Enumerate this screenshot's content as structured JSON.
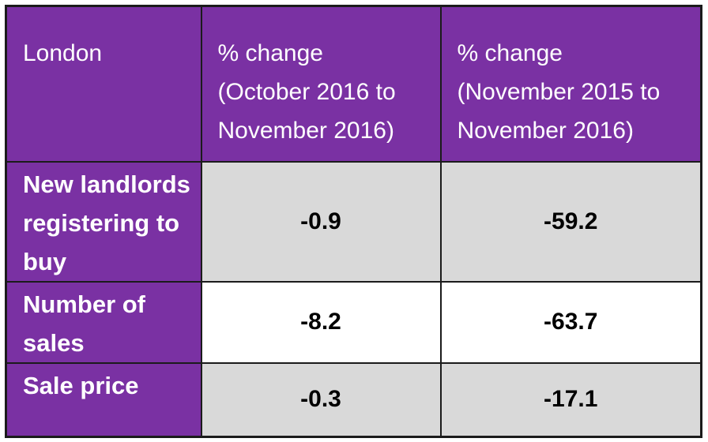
{
  "table": {
    "header": {
      "region": "London",
      "period_1": "% change\n(October 2016 to\nNovember 2016)",
      "period_2": "% change\n(November 2015 to\nNovember 2016)"
    },
    "rows": [
      {
        "label": "New landlords\nregistering to\nbuy",
        "change_oct_2016_to_nov_2016": "-0.9",
        "change_nov_2015_to_nov_2016": "-59.2"
      },
      {
        "label": "Number of\nsales",
        "change_oct_2016_to_nov_2016": "-8.2",
        "change_nov_2015_to_nov_2016": "-63.7"
      },
      {
        "label": "Sale price",
        "change_oct_2016_to_nov_2016": "-0.3",
        "change_nov_2015_to_nov_2016": "-17.1"
      }
    ],
    "colors": {
      "header_purple": "#7A31A3",
      "shaded_row_gray": "#D9D9D9",
      "plain_row_white": "#FFFFFF",
      "border": "#1B1B1B",
      "header_text": "#FFFFFF",
      "value_text": "#000000"
    }
  },
  "chart_data": {
    "type": "table",
    "title": "London",
    "columns": [
      "London",
      "% change (October 2016 to November 2016)",
      "% change (November 2015 to November 2016)"
    ],
    "rows": [
      [
        "New landlords registering to buy",
        -0.9,
        -59.2
      ],
      [
        "Number of sales",
        -8.2,
        -63.7
      ],
      [
        "Sale price",
        -0.3,
        -17.1
      ]
    ]
  }
}
